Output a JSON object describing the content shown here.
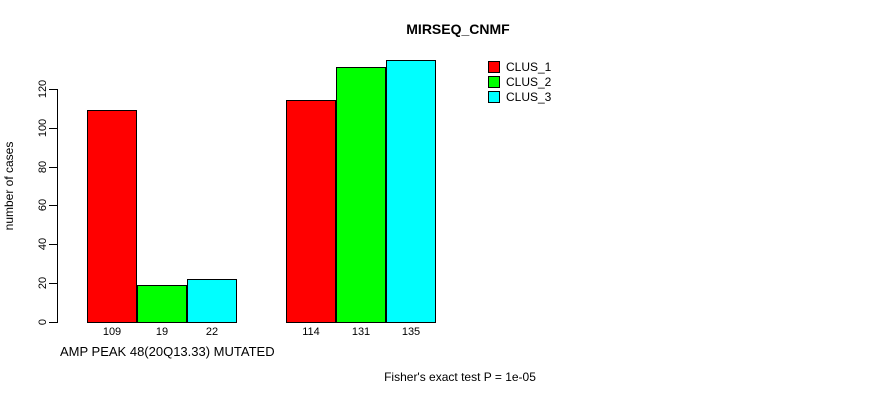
{
  "chart_data": {
    "type": "bar",
    "title": "MIRSEQ_CNMF",
    "ylabel": "number of cases",
    "xlabel": "AMP PEAK 48(20Q13.33) MUTATED",
    "footnote": "Fisher's exact test P = 1e-05",
    "ylim": [
      0,
      140
    ],
    "yticks": [
      0,
      20,
      40,
      60,
      80,
      100,
      120
    ],
    "grid": false,
    "legend_position": "top-right-inside",
    "series": [
      {
        "name": "CLUS_1",
        "color": "#ff0000",
        "values": [
          109,
          114
        ]
      },
      {
        "name": "CLUS_2",
        "color": "#00ff00",
        "values": [
          19,
          131
        ]
      },
      {
        "name": "CLUS_3",
        "color": "#00ffff",
        "values": [
          22,
          135
        ]
      }
    ],
    "x_tick_labels": [
      "109",
      "19",
      "22",
      "114",
      "131",
      "135"
    ]
  }
}
